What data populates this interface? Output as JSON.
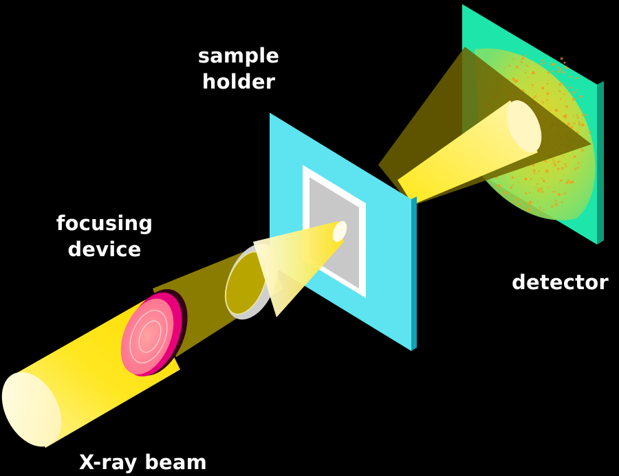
{
  "labels": {
    "sample_holder_line1": "sample",
    "sample_holder_line2": "holder",
    "focusing_device_line1": "focusing",
    "focusing_device_line2": "device",
    "detector": "detector",
    "beam": "X-ray beam"
  },
  "colors": {
    "background": "#000000",
    "beam_yellow": "#ffe81a",
    "beam_pale": "#fffbd0",
    "cone_dim": "#6e6300",
    "holder_cyan": "#5ee3f0",
    "holder_side": "#12a0b4",
    "detector_green": "#1ee6aa",
    "detector_side": "#0f9a78",
    "lens_pink": "#ff5a8c",
    "lens_magenta": "#e8007a",
    "ring_grey": "#cfcfcf",
    "sample_grey": "#c8c8c8",
    "speckle_orange": "#f0a020"
  }
}
